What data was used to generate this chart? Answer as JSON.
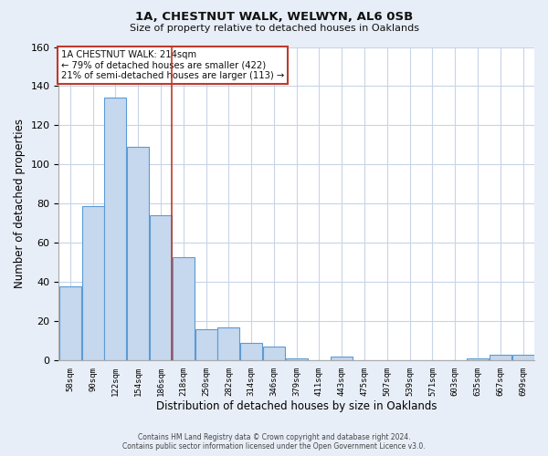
{
  "title": "1A, CHESTNUT WALK, WELWYN, AL6 0SB",
  "subtitle": "Size of property relative to detached houses in Oaklands",
  "xlabel": "Distribution of detached houses by size in Oaklands",
  "ylabel": "Number of detached properties",
  "bar_labels": [
    "58sqm",
    "90sqm",
    "122sqm",
    "154sqm",
    "186sqm",
    "218sqm",
    "250sqm",
    "282sqm",
    "314sqm",
    "346sqm",
    "379sqm",
    "411sqm",
    "443sqm",
    "475sqm",
    "507sqm",
    "539sqm",
    "571sqm",
    "603sqm",
    "635sqm",
    "667sqm",
    "699sqm"
  ],
  "bar_heights": [
    38,
    79,
    134,
    109,
    74,
    53,
    16,
    17,
    9,
    7,
    1,
    0,
    2,
    0,
    0,
    0,
    0,
    0,
    1,
    3,
    3
  ],
  "bar_color": "#c5d8ee",
  "bar_edge_color": "#5b9bd5",
  "highlight_index": 5,
  "highlight_color": "#c0392b",
  "annotation_title": "1A CHESTNUT WALK: 214sqm",
  "annotation_line1": "← 79% of detached houses are smaller (422)",
  "annotation_line2": "21% of semi-detached houses are larger (113) →",
  "annotation_box_color": "#ffffff",
  "annotation_box_edge": "#c0392b",
  "ylim": [
    0,
    160
  ],
  "yticks": [
    0,
    20,
    40,
    60,
    80,
    100,
    120,
    140,
    160
  ],
  "footnote1": "Contains HM Land Registry data © Crown copyright and database right 2024.",
  "footnote2": "Contains public sector information licensed under the Open Government Licence v3.0.",
  "background_color": "#e8eef7",
  "plot_bg_color": "#ffffff",
  "grid_color": "#c8d4e8"
}
